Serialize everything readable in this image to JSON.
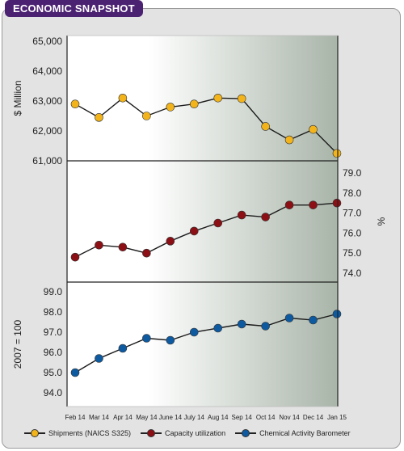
{
  "banner": {
    "title": "ECONOMIC SNAPSHOT"
  },
  "colors": {
    "banner_bg": "#4b2172",
    "shipments": "#f2b41a",
    "capacity": "#8b0f14",
    "cab": "#0d5aa0",
    "plot_grad_start": "#ffffff",
    "plot_grad_end": "#a9b5a9"
  },
  "chart_data": [
    {
      "type": "line",
      "panel": "top",
      "ylabel": "$ Million",
      "ylim": [
        61000,
        65000
      ],
      "yticks": [
        "65,000",
        "64,000",
        "63,000",
        "62,000",
        "61,000"
      ],
      "ytick_values": [
        65000,
        64000,
        63000,
        62000,
        61000
      ],
      "series": [
        {
          "name": "Shipments (NAICS S325)",
          "color": "#f2b41a",
          "values": [
            62900,
            62450,
            63100,
            62500,
            62800,
            62900,
            63100,
            63080,
            62150,
            61700,
            62050,
            61250
          ]
        }
      ]
    },
    {
      "type": "line",
      "panel": "middle",
      "ylabel": "%",
      "ylim": [
        73.5,
        79.0
      ],
      "yticks": [
        "79.0",
        "78.0",
        "77.0",
        "76.0",
        "75.0",
        "74.0"
      ],
      "ytick_values": [
        79,
        78,
        77,
        76,
        75,
        74
      ],
      "series": [
        {
          "name": "Capacity utilization",
          "color": "#8b0f14",
          "values": [
            74.8,
            75.4,
            75.3,
            75.0,
            75.6,
            76.1,
            76.5,
            76.9,
            76.8,
            77.4,
            77.4,
            77.5
          ]
        }
      ]
    },
    {
      "type": "line",
      "panel": "bottom",
      "ylabel": "2007 = 100",
      "ylim": [
        93.5,
        99.0
      ],
      "yticks": [
        "99.0",
        "98.0",
        "97.0",
        "96.0",
        "95.0",
        "94.0"
      ],
      "ytick_values": [
        99,
        98,
        97,
        96,
        95,
        94
      ],
      "series": [
        {
          "name": "Chemical Activity Barometer",
          "color": "#0d5aa0",
          "values": [
            95.0,
            95.7,
            96.2,
            96.7,
            96.6,
            97.0,
            97.2,
            97.4,
            97.3,
            97.7,
            97.6,
            97.9
          ]
        }
      ]
    }
  ],
  "categories": [
    "Feb 14",
    "Mar 14",
    "Apr 14",
    "May 14",
    "June 14",
    "July 14",
    "Aug 14",
    "Sep 14",
    "Oct 14",
    "Nov 14",
    "Dec 14",
    "Jan 15"
  ],
  "legend": [
    {
      "label": "Shipments (NAICS S325)",
      "color": "#f2b41a"
    },
    {
      "label": "Capacity utilization",
      "color": "#8b0f14"
    },
    {
      "label": "Chemical Activity Barometer",
      "color": "#0d5aa0"
    }
  ]
}
